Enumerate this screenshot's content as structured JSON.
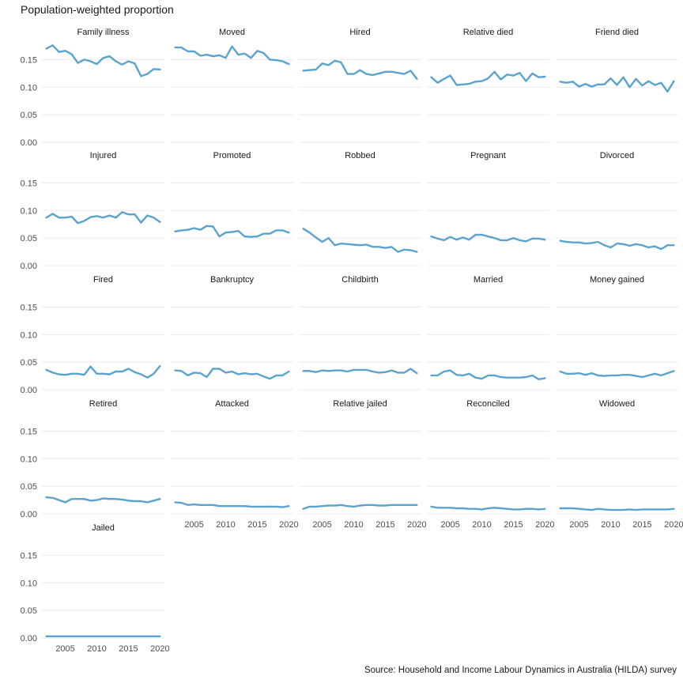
{
  "chart_data": {
    "type": "line",
    "title": "Population-weighted proportion",
    "caption": "Source: Household and Income Labour Dynamics in Australia (HILDA) survey",
    "xlabel": "",
    "ylabel": "",
    "ylim": [
      0,
      0.175
    ],
    "y_ticks": [
      0,
      0.05,
      0.1,
      0.15
    ],
    "y_tick_labels": [
      "0.00",
      "0.05",
      "0.10",
      "0.15"
    ],
    "x_ticks": [
      2005,
      2010,
      2015,
      2020
    ],
    "x_tick_labels": [
      "2005",
      "2010",
      "2015",
      "2020"
    ],
    "grid": true,
    "line_color": "#5BA3CF",
    "x": [
      2002,
      2003,
      2004,
      2005,
      2006,
      2007,
      2008,
      2009,
      2010,
      2011,
      2012,
      2013,
      2014,
      2015,
      2016,
      2017,
      2018,
      2019,
      2020
    ],
    "panels": [
      {
        "name": "Family illness",
        "values": [
          0.17,
          0.176,
          0.164,
          0.166,
          0.16,
          0.144,
          0.15,
          0.147,
          0.142,
          0.153,
          0.156,
          0.147,
          0.141,
          0.147,
          0.143,
          0.12,
          0.124,
          0.133,
          0.132
        ]
      },
      {
        "name": "Moved",
        "values": [
          0.172,
          0.172,
          0.165,
          0.165,
          0.157,
          0.159,
          0.156,
          0.158,
          0.153,
          0.174,
          0.159,
          0.161,
          0.153,
          0.166,
          0.162,
          0.15,
          0.149,
          0.147,
          0.142
        ]
      },
      {
        "name": "Hired",
        "values": [
          0.13,
          0.131,
          0.132,
          0.143,
          0.14,
          0.148,
          0.145,
          0.124,
          0.124,
          0.131,
          0.124,
          0.122,
          0.125,
          0.128,
          0.128,
          0.126,
          0.124,
          0.13,
          0.115
        ]
      },
      {
        "name": "Relative died",
        "values": [
          0.118,
          0.108,
          0.115,
          0.121,
          0.104,
          0.105,
          0.106,
          0.11,
          0.111,
          0.116,
          0.128,
          0.114,
          0.123,
          0.121,
          0.126,
          0.111,
          0.125,
          0.118,
          0.119
        ]
      },
      {
        "name": "Friend died",
        "values": [
          0.11,
          0.108,
          0.11,
          0.101,
          0.106,
          0.101,
          0.105,
          0.105,
          0.116,
          0.104,
          0.118,
          0.1,
          0.115,
          0.103,
          0.111,
          0.104,
          0.108,
          0.092,
          0.111
        ]
      },
      {
        "name": "Injured",
        "values": [
          0.087,
          0.094,
          0.087,
          0.087,
          0.089,
          0.077,
          0.081,
          0.088,
          0.09,
          0.087,
          0.091,
          0.087,
          0.097,
          0.093,
          0.093,
          0.078,
          0.091,
          0.087,
          0.079
        ]
      },
      {
        "name": "Promoted",
        "values": [
          0.062,
          0.064,
          0.065,
          0.068,
          0.065,
          0.072,
          0.071,
          0.053,
          0.06,
          0.061,
          0.063,
          0.053,
          0.052,
          0.053,
          0.058,
          0.058,
          0.064,
          0.064,
          0.06
        ]
      },
      {
        "name": "Robbed",
        "values": [
          0.067,
          0.06,
          0.051,
          0.043,
          0.05,
          0.037,
          0.04,
          0.039,
          0.038,
          0.037,
          0.038,
          0.034,
          0.034,
          0.032,
          0.034,
          0.025,
          0.029,
          0.028,
          0.025
        ]
      },
      {
        "name": "Pregnant",
        "values": [
          0.053,
          0.049,
          0.046,
          0.052,
          0.047,
          0.051,
          0.047,
          0.056,
          0.056,
          0.053,
          0.05,
          0.046,
          0.046,
          0.05,
          0.046,
          0.044,
          0.049,
          0.049,
          0.047
        ]
      },
      {
        "name": "Divorced",
        "values": [
          0.045,
          0.043,
          0.042,
          0.042,
          0.04,
          0.041,
          0.043,
          0.037,
          0.033,
          0.04,
          0.039,
          0.036,
          0.039,
          0.037,
          0.033,
          0.035,
          0.03,
          0.037,
          0.037
        ]
      },
      {
        "name": "Fired",
        "values": [
          0.036,
          0.031,
          0.028,
          0.027,
          0.029,
          0.029,
          0.027,
          0.042,
          0.029,
          0.029,
          0.028,
          0.033,
          0.033,
          0.038,
          0.032,
          0.028,
          0.022,
          0.029,
          0.043
        ]
      },
      {
        "name": "Bankruptcy",
        "values": [
          0.035,
          0.034,
          0.026,
          0.031,
          0.03,
          0.023,
          0.038,
          0.038,
          0.031,
          0.033,
          0.028,
          0.03,
          0.028,
          0.029,
          0.024,
          0.02,
          0.026,
          0.026,
          0.033
        ]
      },
      {
        "name": "Childbirth",
        "values": [
          0.034,
          0.034,
          0.032,
          0.035,
          0.034,
          0.035,
          0.035,
          0.033,
          0.036,
          0.036,
          0.036,
          0.033,
          0.031,
          0.032,
          0.035,
          0.031,
          0.031,
          0.038,
          0.03
        ]
      },
      {
        "name": "Married",
        "values": [
          0.026,
          0.026,
          0.033,
          0.035,
          0.027,
          0.026,
          0.029,
          0.022,
          0.02,
          0.026,
          0.026,
          0.023,
          0.022,
          0.022,
          0.022,
          0.023,
          0.026,
          0.019,
          0.021
        ]
      },
      {
        "name": "Money gained",
        "values": [
          0.033,
          0.029,
          0.029,
          0.03,
          0.027,
          0.03,
          0.026,
          0.025,
          0.026,
          0.026,
          0.027,
          0.027,
          0.025,
          0.023,
          0.026,
          0.029,
          0.026,
          0.03,
          0.034
        ]
      },
      {
        "name": "Retired",
        "values": [
          0.03,
          0.029,
          0.025,
          0.021,
          0.027,
          0.027,
          0.027,
          0.024,
          0.025,
          0.028,
          0.027,
          0.027,
          0.026,
          0.024,
          0.023,
          0.023,
          0.021,
          0.024,
          0.027
        ]
      },
      {
        "name": "Attacked",
        "values": [
          0.021,
          0.02,
          0.016,
          0.017,
          0.016,
          0.016,
          0.016,
          0.014,
          0.014,
          0.014,
          0.014,
          0.014,
          0.013,
          0.013,
          0.013,
          0.013,
          0.013,
          0.012,
          0.014
        ]
      },
      {
        "name": "Relative jailed",
        "values": [
          0.009,
          0.013,
          0.013,
          0.014,
          0.015,
          0.015,
          0.016,
          0.014,
          0.013,
          0.015,
          0.016,
          0.016,
          0.015,
          0.015,
          0.016,
          0.016,
          0.016,
          0.016,
          0.016
        ]
      },
      {
        "name": "Reconciled",
        "values": [
          0.013,
          0.011,
          0.011,
          0.011,
          0.01,
          0.01,
          0.009,
          0.009,
          0.008,
          0.01,
          0.011,
          0.01,
          0.009,
          0.008,
          0.008,
          0.009,
          0.009,
          0.008,
          0.009
        ]
      },
      {
        "name": "Widowed",
        "values": [
          0.01,
          0.01,
          0.01,
          0.009,
          0.008,
          0.007,
          0.009,
          0.008,
          0.007,
          0.007,
          0.007,
          0.008,
          0.007,
          0.008,
          0.008,
          0.008,
          0.008,
          0.008,
          0.009
        ]
      },
      {
        "name": "Jailed",
        "values": [
          0.003,
          0.003,
          0.003,
          0.003,
          0.003,
          0.003,
          0.003,
          0.003,
          0.003,
          0.003,
          0.003,
          0.003,
          0.003,
          0.003,
          0.003,
          0.003,
          0.003,
          0.003,
          0.003
        ]
      }
    ]
  }
}
